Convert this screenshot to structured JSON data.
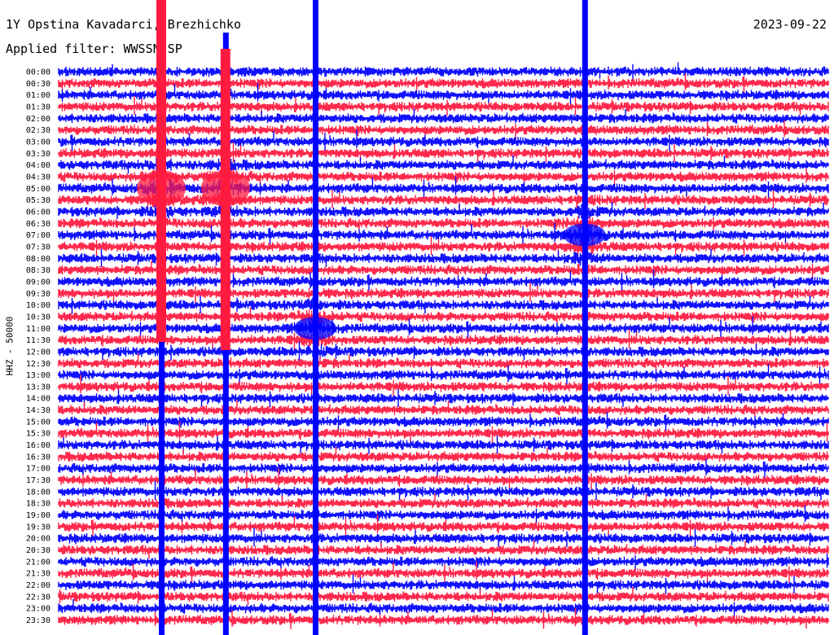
{
  "header": {
    "title": "1Y Opstina Kavadarci, Brezhichko",
    "date": "2023-09-22",
    "filter": "Applied filter: WWSSN-SP"
  },
  "chart_data": {
    "type": "line",
    "title": "1Y Opstina Kavadarci, Brezhichko",
    "ylabel": "HHZ - 50000",
    "trace_colors": [
      "#0000ff",
      "#ff1a40"
    ],
    "rows": [
      "00:00",
      "00:30",
      "01:00",
      "01:30",
      "02:00",
      "02:30",
      "03:00",
      "03:30",
      "04:00",
      "04:30",
      "05:00",
      "05:30",
      "06:00",
      "06:30",
      "07:00",
      "07:30",
      "08:00",
      "08:30",
      "09:00",
      "09:30",
      "10:00",
      "10:30",
      "11:00",
      "11:30",
      "12:00",
      "12:30",
      "13:00",
      "13:30",
      "14:00",
      "14:30",
      "15:00",
      "15:30",
      "16:00",
      "16:30",
      "17:00",
      "17:30",
      "18:00",
      "18:30",
      "19:00",
      "19:30",
      "20:00",
      "20:30",
      "21:00",
      "21:30",
      "22:00",
      "22:30",
      "23:00",
      "23:30"
    ],
    "events": [
      {
        "row": 10,
        "minute": 4.0,
        "color": "red"
      },
      {
        "row": 10,
        "minute": 6.5,
        "color": "red"
      },
      {
        "row": 22,
        "minute": 10.0,
        "color": "blue"
      },
      {
        "row": 14,
        "minute": 20.5,
        "color": "blue"
      }
    ],
    "saturated_minutes": [
      4.0,
      6.5,
      10.0,
      20.5
    ],
    "x_range_minutes": [
      0,
      30
    ],
    "grid": false
  }
}
